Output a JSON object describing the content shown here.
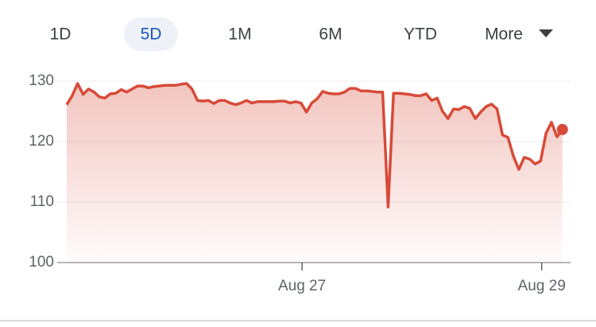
{
  "tabs": [
    "1D",
    "5D",
    "1M",
    "6M",
    "YTD",
    "More"
  ],
  "selected_tab": 1,
  "chart_data": {
    "type": "line",
    "color": "#d84a38",
    "x": [
      0,
      1,
      2,
      3,
      4,
      5,
      6,
      7,
      8,
      9,
      10,
      11,
      12,
      13,
      14,
      15,
      16,
      17,
      18,
      19,
      20,
      21,
      22,
      23,
      24,
      25,
      26,
      27,
      28,
      29,
      30,
      31,
      32,
      33,
      34,
      35,
      36,
      37,
      38,
      39,
      40,
      41,
      42,
      43,
      44,
      45,
      46,
      47,
      48,
      49,
      50,
      51,
      52,
      53,
      54,
      55,
      56,
      57,
      58,
      59,
      60,
      61,
      62,
      63,
      64,
      65,
      66,
      67,
      68,
      69,
      70,
      71,
      72,
      73,
      74,
      75,
      76,
      77,
      78,
      79,
      80,
      81,
      82,
      83,
      84,
      85,
      86,
      87,
      88,
      89,
      90,
      91
    ],
    "values": [
      126.1,
      127.6,
      129.6,
      127.8,
      128.7,
      128.2,
      127.4,
      127.2,
      127.9,
      128.0,
      128.6,
      128.2,
      128.7,
      129.2,
      129.2,
      128.9,
      129.1,
      129.2,
      129.3,
      129.3,
      129.3,
      129.5,
      129.6,
      128.7,
      126.8,
      126.7,
      126.8,
      126.3,
      126.8,
      126.8,
      126.4,
      126.1,
      126.4,
      126.8,
      126.4,
      126.6,
      126.6,
      126.6,
      126.6,
      126.7,
      126.7,
      126.4,
      126.6,
      126.4,
      124.9,
      126.4,
      127.1,
      128.3,
      128.0,
      127.9,
      127.9,
      128.2,
      128.8,
      128.8,
      128.4,
      128.4,
      128.3,
      128.2,
      128.2,
      109.2,
      128.0,
      128.0,
      127.9,
      127.8,
      127.6,
      127.6,
      127.9,
      126.8,
      127.2,
      125.0,
      123.8,
      125.4,
      125.3,
      125.8,
      125.5,
      123.8,
      124.9,
      125.8,
      126.2,
      125.4,
      121.1,
      120.7,
      117.6,
      115.4,
      117.4,
      117.1,
      116.3,
      116.8,
      121.4,
      123.2,
      120.8,
      122.0
    ],
    "xlim": [
      0,
      92.5
    ],
    "xticks": [
      {
        "value": 43.2,
        "label": "Aug 27"
      },
      {
        "value": 87.2,
        "label": "Aug 29"
      }
    ],
    "ylim": [
      100,
      130
    ],
    "yticks": [
      100,
      110,
      120,
      130
    ],
    "grid": true
  }
}
